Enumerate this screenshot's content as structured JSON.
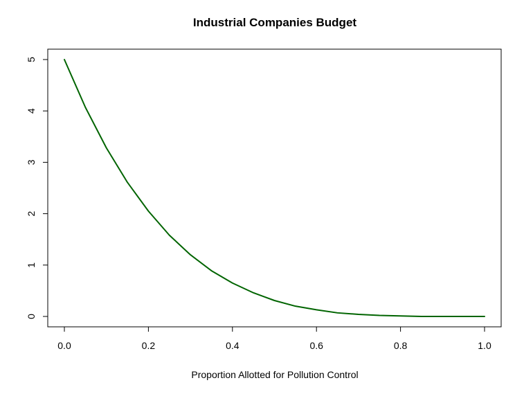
{
  "chart_data": {
    "type": "line",
    "title": "Industrial Companies Budget",
    "xlabel": "Proportion Allotted for Pollution Control",
    "ylabel": "",
    "xlim": [
      0.0,
      1.0
    ],
    "ylim": [
      0,
      5
    ],
    "x_ticks": [
      "0.0",
      "0.2",
      "0.4",
      "0.6",
      "0.8",
      "1.0"
    ],
    "y_ticks": [
      "0",
      "1",
      "2",
      "3",
      "4",
      "5"
    ],
    "grid": false,
    "legend": "none",
    "series": [
      {
        "color": "#006400",
        "x": [
          0.0,
          0.05,
          0.1,
          0.15,
          0.2,
          0.25,
          0.3,
          0.35,
          0.4,
          0.45,
          0.5,
          0.55,
          0.6,
          0.65,
          0.7,
          0.75,
          0.8,
          0.85,
          0.9,
          0.95,
          1.0
        ],
        "y": [
          5.0,
          4.07,
          3.28,
          2.61,
          2.05,
          1.58,
          1.2,
          0.89,
          0.65,
          0.46,
          0.31,
          0.2,
          0.13,
          0.07,
          0.04,
          0.02,
          0.01,
          0.0,
          0.0,
          0.0,
          0.0
        ]
      }
    ]
  }
}
